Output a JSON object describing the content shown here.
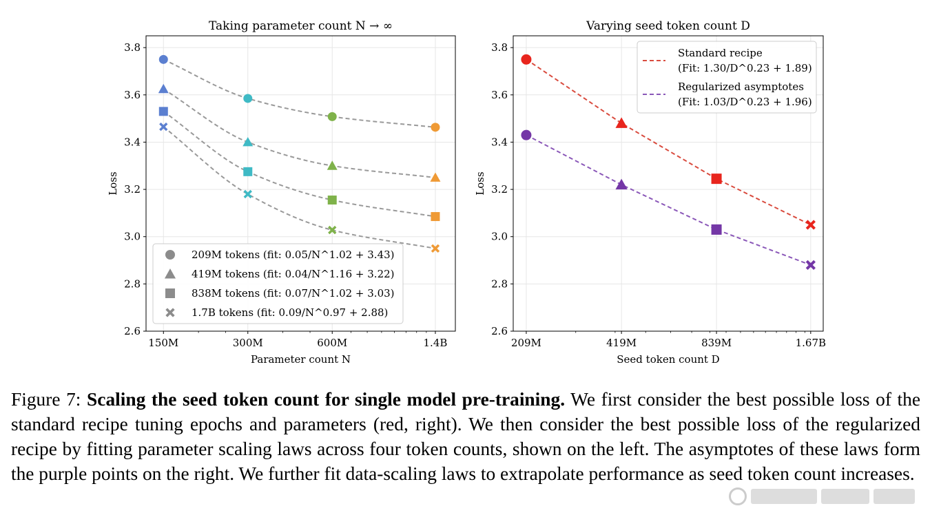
{
  "chart_data": [
    {
      "type": "scatter",
      "title": "Taking parameter count N → ∞",
      "xlabel": "Parameter count N",
      "ylabel": "Loss",
      "x_scale": "log",
      "x_ticks": [
        150,
        300,
        600,
        1400
      ],
      "x_tick_labels": [
        "150M",
        "300M",
        "600M",
        "1.4B"
      ],
      "xlim": [
        130,
        1650
      ],
      "ylim": [
        2.6,
        3.85
      ],
      "y_ticks": [
        2.6,
        2.8,
        3.0,
        3.2,
        3.4,
        3.6,
        3.8
      ],
      "y_tick_labels": [
        "2.6",
        "2.8",
        "3.0",
        "3.2",
        "3.4",
        "3.6",
        "3.8"
      ],
      "grid": true,
      "legend_position": "bottom-left",
      "x": [
        150,
        300,
        600,
        1400
      ],
      "point_colors": [
        "#5b7fd0",
        "#3fbac5",
        "#7fb24a",
        "#ef9a35"
      ],
      "fit_color": "#999999",
      "legend_marker_color": "#8c8c8c",
      "series": [
        {
          "name": "209M tokens (fit: 0.05/N^1.02 + 3.43)",
          "marker": "circle",
          "values": [
            3.75,
            3.585,
            3.508,
            3.463
          ],
          "fit": {
            "a": 0.05,
            "b": 1.02,
            "c": 3.43
          }
        },
        {
          "name": "419M tokens (fit: 0.04/N^1.16 + 3.22)",
          "marker": "triangle",
          "values": [
            3.625,
            3.4,
            3.3,
            3.25
          ],
          "fit": {
            "a": 0.04,
            "b": 1.16,
            "c": 3.22
          }
        },
        {
          "name": "838M tokens (fit: 0.07/N^1.02 + 3.03)",
          "marker": "square",
          "values": [
            3.53,
            3.275,
            3.155,
            3.085
          ],
          "fit": {
            "a": 0.07,
            "b": 1.02,
            "c": 3.03
          }
        },
        {
          "name": "1.7B tokens (fit: 0.09/N^0.97 + 2.88)",
          "marker": "x",
          "values": [
            3.465,
            3.18,
            3.028,
            2.95
          ],
          "fit": {
            "a": 0.09,
            "b": 0.97,
            "c": 2.88
          }
        }
      ]
    },
    {
      "type": "line",
      "title": "Varying seed token count D",
      "xlabel": "Seed token count D",
      "ylabel": "Loss",
      "x_scale": "log",
      "x_ticks": [
        209,
        419,
        839,
        1670
      ],
      "x_tick_labels": [
        "209M",
        "419M",
        "839M",
        "1.67B"
      ],
      "xlim": [
        190,
        1830
      ],
      "ylim": [
        2.6,
        3.85
      ],
      "y_ticks": [
        2.6,
        2.8,
        3.0,
        3.2,
        3.4,
        3.6,
        3.8
      ],
      "y_tick_labels": [
        "2.6",
        "2.8",
        "3.0",
        "3.2",
        "3.4",
        "3.6",
        "3.8"
      ],
      "grid": true,
      "legend_position": "top-right",
      "x": [
        209,
        419,
        839,
        1670
      ],
      "markers": [
        "circle",
        "triangle",
        "square",
        "x"
      ],
      "series": [
        {
          "name_lines": [
            "Standard recipe",
            "(Fit: 1.30/D^0.23 + 1.89)"
          ],
          "color": "#e8251d",
          "line_color": "#d94b3e",
          "values": [
            3.75,
            3.48,
            3.245,
            3.05
          ]
        },
        {
          "name_lines": [
            "Regularized asymptotes",
            "(Fit: 1.03/D^0.23 + 1.96)"
          ],
          "color": "#7437a6",
          "line_color": "#8a57b8",
          "values": [
            3.43,
            3.22,
            3.03,
            2.88
          ]
        }
      ]
    }
  ],
  "caption": {
    "label": "Figure 7:",
    "title": "Scaling the seed token count for single model pre-training.",
    "text": "We first consider the best possible loss of the standard recipe tuning epochs and parameters (red, right). We then consider the best possible loss of the regularized recipe by fitting parameter scaling laws across four token counts, shown on the left. The asymptotes of these laws form the purple points on the right. We further fit data-scaling laws to extrapolate performance as seed token count increases."
  }
}
